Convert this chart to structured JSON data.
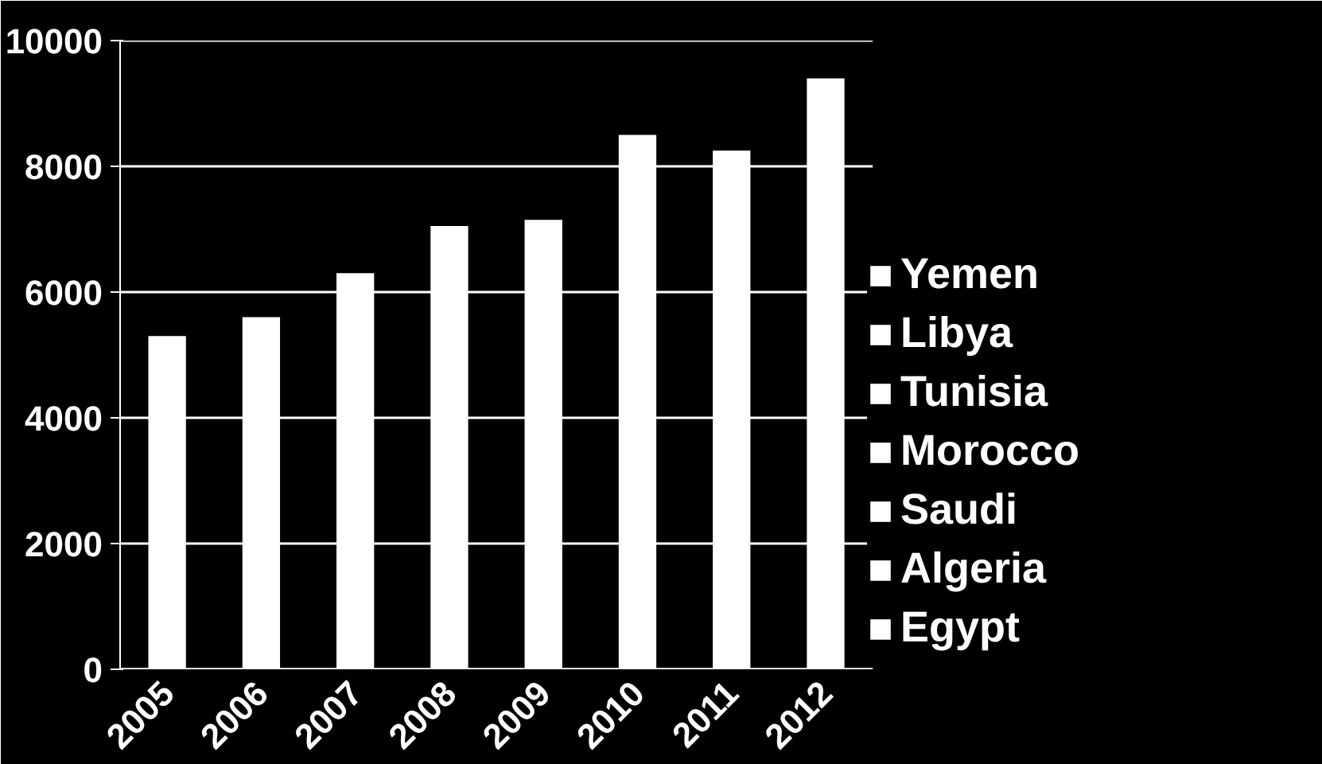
{
  "chart_data": {
    "type": "bar",
    "categories": [
      "2005",
      "2006",
      "2007",
      "2008",
      "2009",
      "2010",
      "2011",
      "2012"
    ],
    "series": [
      {
        "name": "Egypt",
        "color": "#ffffff",
        "values": [
          5300,
          5600,
          6300,
          7050,
          7150,
          8500,
          8250,
          9400
        ]
      },
      {
        "name": "Algeria",
        "color": "#ffffff",
        "values": [
          null,
          null,
          null,
          null,
          null,
          null,
          null,
          null
        ]
      },
      {
        "name": "Saudi",
        "color": "#ffffff",
        "values": [
          null,
          null,
          null,
          null,
          null,
          null,
          null,
          null
        ]
      },
      {
        "name": "Morocco",
        "color": "#ffffff",
        "values": [
          null,
          null,
          null,
          null,
          null,
          null,
          null,
          null
        ]
      },
      {
        "name": "Tunisia",
        "color": "#ffffff",
        "values": [
          null,
          null,
          null,
          null,
          null,
          null,
          null,
          null
        ]
      },
      {
        "name": "Libya",
        "color": "#ffffff",
        "values": [
          null,
          null,
          null,
          null,
          null,
          null,
          null,
          null
        ]
      },
      {
        "name": "Yemen",
        "color": "#ffffff",
        "values": [
          null,
          null,
          null,
          null,
          null,
          null,
          null,
          null
        ]
      }
    ],
    "ylim": [
      0,
      10000
    ],
    "yticks": [
      0,
      2000,
      4000,
      6000,
      8000,
      10000
    ],
    "grid": "y",
    "legend": "right"
  }
}
